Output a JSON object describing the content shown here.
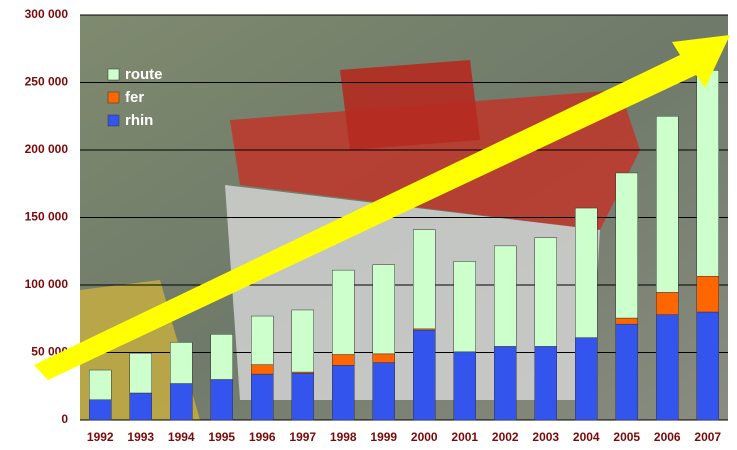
{
  "chart_data": {
    "type": "stacked_bar",
    "categories": [
      "1992",
      "1993",
      "1994",
      "1995",
      "1996",
      "1997",
      "1998",
      "1999",
      "2000",
      "2001",
      "2002",
      "2003",
      "2004",
      "2005",
      "2006",
      "2007"
    ],
    "series": [
      {
        "name": "rhin",
        "color": "#3355ee",
        "values": [
          15000,
          20000,
          27000,
          30000,
          34000,
          34500,
          40500,
          42500,
          66500,
          50500,
          54500,
          54500,
          61000,
          71000,
          78000,
          80000
        ]
      },
      {
        "name": "fer",
        "color": "#ff6600",
        "values": [
          0,
          0,
          0,
          0,
          7000,
          1000,
          8000,
          6500,
          1000,
          0,
          0,
          0,
          0,
          4500,
          16500,
          26500
        ]
      },
      {
        "name": "route",
        "color": "#ccffcc",
        "values": [
          22000,
          29500,
          30500,
          33500,
          36000,
          46000,
          62500,
          66000,
          73500,
          67000,
          74500,
          80500,
          96000,
          107500,
          130500,
          152500
        ]
      }
    ],
    "ylim": [
      0,
      300000
    ],
    "yticks": [
      {
        "value": 0,
        "label": "0"
      },
      {
        "value": 50000,
        "label": "50 000"
      },
      {
        "value": 100000,
        "label": "100 000"
      },
      {
        "value": 150000,
        "label": "150 000"
      },
      {
        "value": 200000,
        "label": "200 000"
      },
      {
        "value": 250000,
        "label": "250 000"
      },
      {
        "value": 300000,
        "label": "300 000"
      }
    ],
    "grid": true,
    "legend": "top-left"
  }
}
